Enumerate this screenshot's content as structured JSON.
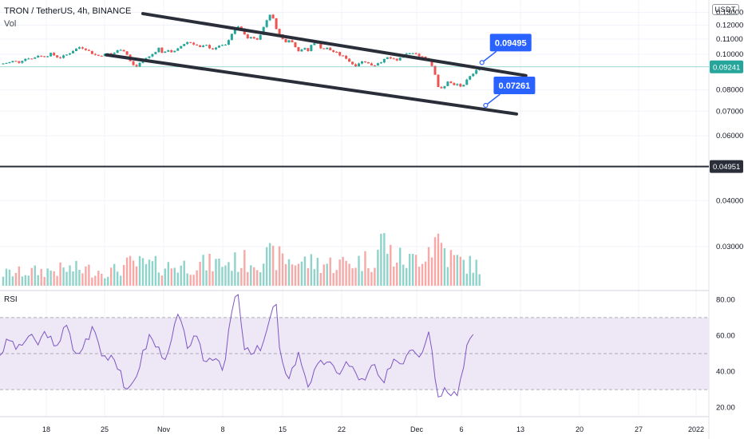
{
  "header": {
    "symbol_line": "TRON / TetherUS, 4h, BINANCE",
    "vol_label": "Vol",
    "currency": "USDT"
  },
  "colors": {
    "up": "#26a69a",
    "down": "#ef5350",
    "up_vol": "#8fd3cb",
    "down_vol": "#f7a9a7",
    "trendline": "#2a2e39",
    "callout": "#2962ff",
    "rsi_line": "#7e57c2",
    "rsi_band": "#ede7f6"
  },
  "chart_data": [
    {
      "type": "candlestick",
      "title": "TRON / TetherUS, 4h, BINANCE",
      "x_labels": [
        "18",
        "25",
        "Nov",
        "8",
        "15",
        "22",
        "Dec",
        "6",
        "13",
        "20",
        "27",
        "2022"
      ],
      "price_axis_labels": [
        "0.13000",
        "0.12000",
        "0.11000",
        "0.10000",
        "0.08000",
        "0.07000",
        "0.06000",
        "0.04000",
        "0.03000"
      ],
      "ylim": [
        0.023,
        0.137
      ],
      "scale": "log",
      "current_price": "0.09241",
      "horizontal_line": "0.04951",
      "callouts": [
        "0.09495",
        "0.07261"
      ],
      "channel": {
        "upper": [
          [
            15.3,
            0.129
          ],
          [
            56.3,
            0.0875
          ]
        ],
        "lower": [
          [
            11.4,
            0.0996
          ],
          [
            55.3,
            0.0688
          ]
        ]
      },
      "price_path": [
        [
          0.0,
          0.094
        ],
        [
          0.5,
          0.0945
        ],
        [
          1.0,
          0.095
        ],
        [
          1.5,
          0.096
        ],
        [
          2.0,
          0.095
        ],
        [
          2.5,
          0.0968
        ],
        [
          3.0,
          0.0978
        ],
        [
          3.5,
          0.097
        ],
        [
          4.0,
          0.0995
        ],
        [
          4.5,
          0.0985
        ],
        [
          5.0,
          0.099
        ],
        [
          5.5,
          0.1005
        ],
        [
          6.0,
          0.0985
        ],
        [
          6.5,
          0.098
        ],
        [
          7.0,
          0.0993
        ],
        [
          7.5,
          0.101
        ],
        [
          8.0,
          0.103
        ],
        [
          8.5,
          0.1045
        ],
        [
          9.0,
          0.104
        ],
        [
          9.5,
          0.102
        ],
        [
          10.0,
          0.1
        ],
        [
          10.5,
          0.099
        ],
        [
          11.0,
          0.0995
        ],
        [
          11.5,
          0.1005
        ],
        [
          12.0,
          0.1
        ],
        [
          12.5,
          0.102
        ],
        [
          13.0,
          0.1035
        ],
        [
          13.5,
          0.101
        ],
        [
          14.0,
          0.095
        ],
        [
          14.5,
          0.092
        ],
        [
          15.0,
          0.095
        ],
        [
          15.5,
          0.0975
        ],
        [
          16.0,
          0.0985
        ],
        [
          16.5,
          0.101
        ],
        [
          17.0,
          0.104
        ],
        [
          17.5,
          0.1
        ],
        [
          18.0,
          0.103
        ],
        [
          18.5,
          0.101
        ],
        [
          19.0,
          0.103
        ],
        [
          19.5,
          0.106
        ],
        [
          20.0,
          0.108
        ],
        [
          20.5,
          0.1075
        ],
        [
          21.0,
          0.106
        ],
        [
          21.5,
          0.104
        ],
        [
          22.0,
          0.106
        ],
        [
          22.5,
          0.104
        ],
        [
          23.0,
          0.103
        ],
        [
          23.5,
          0.106
        ],
        [
          24.0,
          0.105
        ],
        [
          24.5,
          0.109
        ],
        [
          25.0,
          0.116
        ],
        [
          25.5,
          0.119
        ],
        [
          26.0,
          0.116
        ],
        [
          26.5,
          0.11
        ],
        [
          27.0,
          0.112
        ],
        [
          27.5,
          0.109
        ],
        [
          28.0,
          0.115
        ],
        [
          28.5,
          0.123
        ],
        [
          29.0,
          0.13
        ],
        [
          29.5,
          0.119
        ],
        [
          30.0,
          0.112
        ],
        [
          30.5,
          0.108
        ],
        [
          31.0,
          0.11
        ],
        [
          31.5,
          0.106
        ],
        [
          32.0,
          0.102
        ],
        [
          32.5,
          0.104
        ],
        [
          33.0,
          0.102
        ],
        [
          33.5,
          0.108
        ],
        [
          34.0,
          0.107
        ],
        [
          34.5,
          0.103
        ],
        [
          35.0,
          0.104
        ],
        [
          35.5,
          0.102
        ],
        [
          36.0,
          0.101
        ],
        [
          36.5,
          0.099
        ],
        [
          37.0,
          0.098
        ],
        [
          37.5,
          0.095
        ],
        [
          38.0,
          0.093
        ],
        [
          38.5,
          0.095
        ],
        [
          39.0,
          0.096
        ],
        [
          39.5,
          0.094
        ],
        [
          40.0,
          0.093
        ],
        [
          40.5,
          0.095
        ],
        [
          41.0,
          0.096
        ],
        [
          41.5,
          0.098
        ],
        [
          42.0,
          0.097
        ],
        [
          42.5,
          0.096
        ],
        [
          43.0,
          0.099
        ],
        [
          43.5,
          0.1
        ],
        [
          44.0,
          0.101
        ],
        [
          44.5,
          0.1
        ],
        [
          45.0,
          0.099
        ],
        [
          45.5,
          0.098
        ],
        [
          46.0,
          0.096
        ],
        [
          46.5,
          0.09
        ],
        [
          47.0,
          0.08
        ],
        [
          47.5,
          0.081
        ],
        [
          48.0,
          0.085
        ],
        [
          48.5,
          0.082
        ],
        [
          49.0,
          0.083
        ],
        [
          49.5,
          0.081
        ],
        [
          50.0,
          0.085
        ],
        [
          50.5,
          0.088
        ],
        [
          51.0,
          0.091
        ],
        [
          51.5,
          0.0924
        ]
      ],
      "volume_path": [
        [
          0.0,
          0.25
        ],
        [
          4.0,
          0.3
        ],
        [
          8.0,
          0.35
        ],
        [
          12.0,
          0.3
        ],
        [
          14.0,
          0.45
        ],
        [
          18.0,
          0.4
        ],
        [
          22.0,
          0.45
        ],
        [
          26.0,
          0.5
        ],
        [
          29.0,
          0.6
        ],
        [
          32.0,
          0.5
        ],
        [
          36.0,
          0.45
        ],
        [
          40.0,
          0.55
        ],
        [
          41.0,
          1.0
        ],
        [
          42.0,
          0.6
        ],
        [
          44.0,
          0.5
        ],
        [
          47.0,
          1.0
        ],
        [
          48.0,
          0.6
        ],
        [
          50.0,
          0.45
        ],
        [
          51.5,
          0.4
        ]
      ],
      "rsi_panel_label": "RSI",
      "rsi_axis_labels": [
        "80.00",
        "60.00",
        "40.00",
        "20.00"
      ],
      "rsi_levels": [
        70,
        50,
        30
      ],
      "rsi_ylim": [
        15,
        85
      ],
      "rsi_path": [
        [
          0.0,
          50
        ],
        [
          1.0,
          58
        ],
        [
          2.0,
          52
        ],
        [
          3.0,
          60
        ],
        [
          4.0,
          55
        ],
        [
          5.0,
          63
        ],
        [
          6.0,
          50
        ],
        [
          7.0,
          70
        ],
        [
          8.0,
          47
        ],
        [
          9.0,
          55
        ],
        [
          10.0,
          65
        ],
        [
          11.0,
          48
        ],
        [
          12.0,
          50
        ],
        [
          13.0,
          40
        ],
        [
          13.5,
          27
        ],
        [
          14.0,
          30
        ],
        [
          15.0,
          45
        ],
        [
          16.0,
          60
        ],
        [
          17.0,
          52
        ],
        [
          18.0,
          48
        ],
        [
          19.0,
          72
        ],
        [
          20.0,
          55
        ],
        [
          21.0,
          58
        ],
        [
          22.0,
          45
        ],
        [
          23.0,
          50
        ],
        [
          24.0,
          42
        ],
        [
          25.0,
          80
        ],
        [
          25.5,
          82
        ],
        [
          26.0,
          55
        ],
        [
          27.0,
          48
        ],
        [
          28.0,
          55
        ],
        [
          29.0,
          70
        ],
        [
          29.5,
          82
        ],
        [
          30.0,
          45
        ],
        [
          31.0,
          38
        ],
        [
          32.0,
          50
        ],
        [
          33.0,
          33
        ],
        [
          34.0,
          42
        ],
        [
          35.0,
          47
        ],
        [
          36.0,
          38
        ],
        [
          37.0,
          45
        ],
        [
          38.0,
          40
        ],
        [
          39.0,
          33
        ],
        [
          40.0,
          45
        ],
        [
          41.0,
          30
        ],
        [
          42.0,
          48
        ],
        [
          43.0,
          45
        ],
        [
          44.0,
          55
        ],
        [
          45.0,
          50
        ],
        [
          46.0,
          64
        ],
        [
          46.5,
          42
        ],
        [
          47.0,
          22
        ],
        [
          47.5,
          35
        ],
        [
          48.0,
          30
        ],
        [
          49.0,
          28
        ],
        [
          50.0,
          55
        ],
        [
          51.0,
          60
        ]
      ]
    }
  ]
}
